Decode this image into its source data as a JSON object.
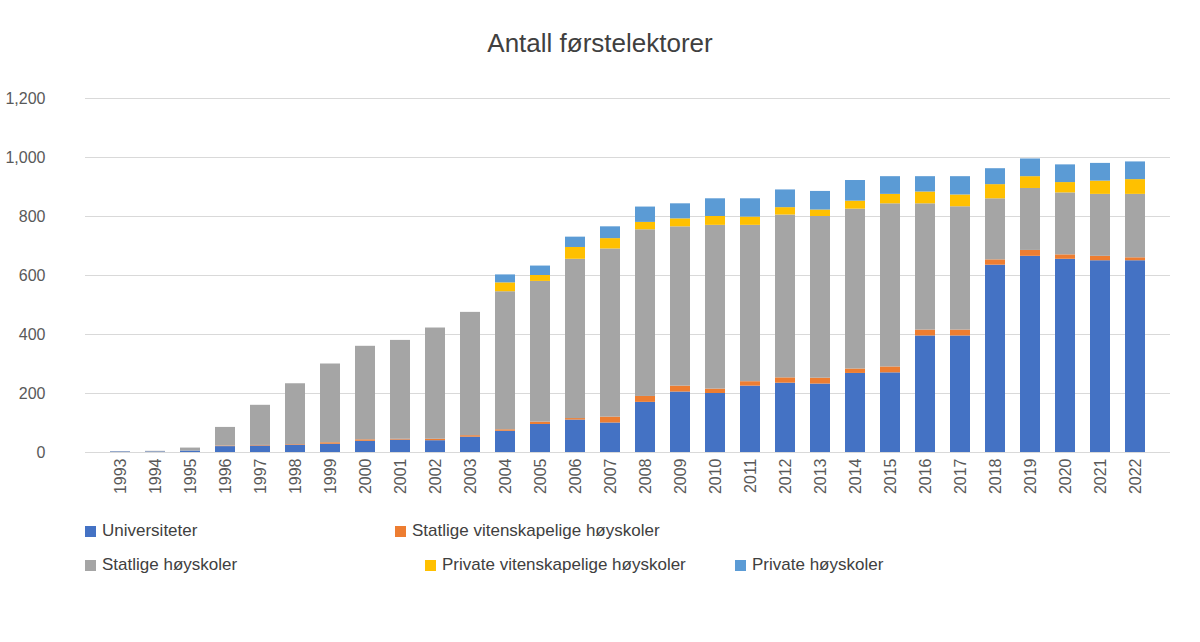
{
  "chart_data": {
    "type": "bar",
    "title": "Antall førstelektorer",
    "categories": [
      "1993",
      "1994",
      "1995",
      "1996",
      "1997",
      "1998",
      "1999",
      "2000",
      "2001",
      "2002",
      "2003",
      "2004",
      "2005",
      "2006",
      "2007",
      "2008",
      "2009",
      "2010",
      "2011",
      "2012",
      "2013",
      "2014",
      "2015",
      "2016",
      "2017",
      "2018",
      "2019",
      "2020",
      "2021",
      "2022"
    ],
    "series": [
      {
        "name": "Universiteter",
        "color": "#4472c4",
        "values": [
          2,
          2,
          5,
          20,
          22,
          25,
          28,
          38,
          42,
          40,
          52,
          72,
          95,
          110,
          100,
          170,
          205,
          200,
          225,
          235,
          232,
          268,
          270,
          395,
          395,
          635,
          665,
          655,
          650,
          650
        ]
      },
      {
        "name": "Statlige vitenskapelige høyskoler",
        "color": "#ed7d31",
        "values": [
          0,
          0,
          0,
          2,
          2,
          2,
          5,
          5,
          3,
          5,
          5,
          5,
          8,
          5,
          20,
          20,
          20,
          15,
          15,
          18,
          20,
          15,
          20,
          20,
          20,
          18,
          20,
          15,
          15,
          10
        ]
      },
      {
        "name": "Statlige høyskoler",
        "color": "#a5a5a5",
        "values": [
          1,
          2,
          10,
          63,
          136,
          206,
          267,
          317,
          335,
          377,
          418,
          468,
          477,
          540,
          570,
          565,
          540,
          555,
          530,
          552,
          548,
          542,
          553,
          428,
          418,
          207,
          210,
          210,
          210,
          215
        ]
      },
      {
        "name": "Private vitenskapelige høyskoler",
        "color": "#ffc000",
        "values": [
          0,
          0,
          0,
          0,
          0,
          0,
          0,
          0,
          0,
          0,
          0,
          30,
          20,
          40,
          35,
          25,
          27,
          30,
          28,
          25,
          22,
          27,
          32,
          40,
          40,
          48,
          40,
          35,
          45,
          50
        ]
      },
      {
        "name": "Private høyskoler",
        "color": "#5b9bd5",
        "values": [
          0,
          0,
          0,
          0,
          0,
          0,
          0,
          0,
          0,
          0,
          0,
          27,
          32,
          35,
          40,
          52,
          51,
          60,
          62,
          60,
          63,
          70,
          60,
          52,
          62,
          54,
          60,
          60,
          60,
          60
        ]
      }
    ],
    "ylim": [
      0,
      1200
    ],
    "yticks": [
      0,
      200,
      400,
      600,
      800,
      1000,
      1200
    ],
    "grid": true,
    "stacked": true,
    "legend": "bottom"
  }
}
